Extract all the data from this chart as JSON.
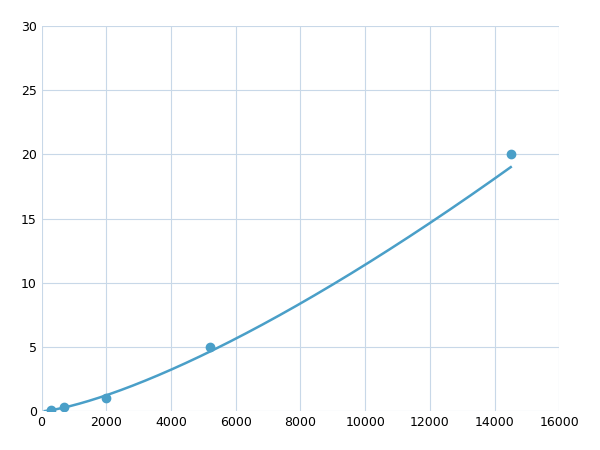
{
  "x_points": [
    300,
    700,
    2000,
    5200,
    14500
  ],
  "y_points": [
    0.1,
    0.3,
    1.0,
    5.0,
    20.0
  ],
  "line_color": "#4a9fc8",
  "marker_color": "#4a9fc8",
  "marker_size": 6,
  "marker_style": "o",
  "line_width": 1.8,
  "xlim": [
    0,
    16000
  ],
  "ylim": [
    0,
    30
  ],
  "xticks": [
    0,
    2000,
    4000,
    6000,
    8000,
    10000,
    12000,
    14000,
    16000
  ],
  "yticks": [
    0,
    5,
    10,
    15,
    20,
    25,
    30
  ],
  "grid_color": "#c8d8e8",
  "background_color": "#ffffff",
  "figure_background": "#ffffff"
}
